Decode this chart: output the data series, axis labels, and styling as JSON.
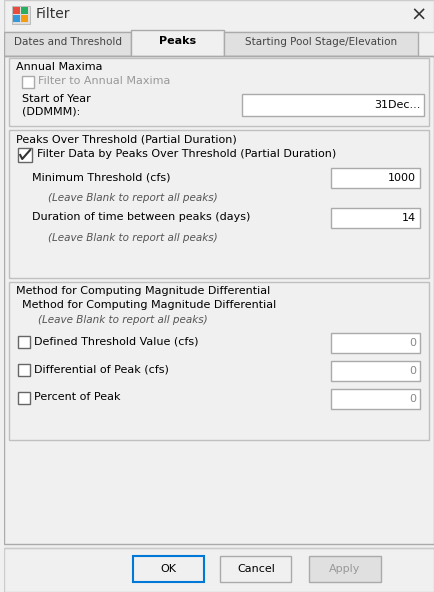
{
  "title": "Filter",
  "bg_color": "#f0f0f0",
  "dialog_bg": "#f0f0f0",
  "tab_active": "Peaks",
  "tabs": [
    "Dates and Threshold",
    "Peaks",
    "Starting Pool Stage/Elevation"
  ],
  "section1_title": "Annual Maxima",
  "checkbox1_label": "Filter to Annual Maxima",
  "checkbox1_checked": false,
  "start_of_year_label": "Start of Year\n(DDMMM):",
  "start_of_year_value": "31Dec",
  "section2_title": "Peaks Over Threshold (Partial Duration)",
  "checkbox2_label": "Filter Data by Peaks Over Threshold (Partial Duration)",
  "checkbox2_checked": true,
  "min_threshold_label": "Minimum Threshold (cfs)",
  "min_threshold_value": "1000",
  "leave_blank1": "(Leave Blank to report all peaks)",
  "duration_label": "Duration of time between peaks (days)",
  "duration_value": "14",
  "leave_blank2": "(Leave Blank to report all peaks)",
  "section3_title": "Method for Computing Magnitude Differential",
  "section3_sub": "Method for Computing Magnitude Differential",
  "leave_blank3": "(Leave Blank to report all peaks)",
  "checkbox3_label": "Defined Threshold Value (cfs)",
  "checkbox3_checked": false,
  "checkbox3_value": "0",
  "checkbox4_label": "Differential of Peak (cfs)",
  "checkbox4_checked": false,
  "checkbox4_value": "0",
  "checkbox5_label": "Percent of Peak",
  "checkbox5_checked": false,
  "checkbox5_value": "0",
  "btn_ok": "OK",
  "btn_cancel": "Cancel",
  "btn_apply": "Apply",
  "title_bar_color": "#ffffff",
  "input_bg": "#ffffff",
  "border_color": "#aaaaaa",
  "text_color": "#000000",
  "disabled_text_color": "#999999",
  "section_border": "#c0c0c0"
}
